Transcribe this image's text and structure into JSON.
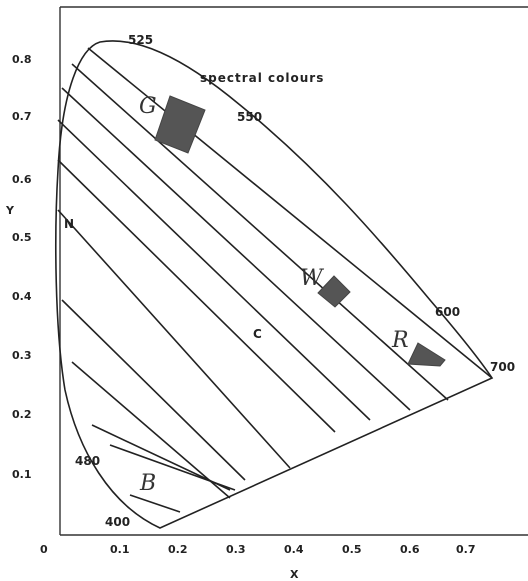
{
  "axes": {
    "x_title": "X",
    "y_title": "Y",
    "x_ticks": [
      "0",
      "0.1",
      "0.2",
      "0.3",
      "0.4",
      "0.5",
      "0.6",
      "0.7"
    ],
    "y_ticks": [
      "0.1",
      "0.2",
      "0.3",
      "0.4",
      "0.5",
      "0.6",
      "0.7",
      "0.8"
    ]
  },
  "locus_labels": {
    "wl_525": "525",
    "wl_550": "550",
    "wl_600": "600",
    "wl_700": "700",
    "wl_480": "480",
    "wl_400": "400"
  },
  "annotations": {
    "spectral": "spectral colours",
    "point_n": "N",
    "point_c": "C"
  },
  "regions": {
    "green": "G",
    "white": "W",
    "red": "R",
    "blue": "B"
  }
}
